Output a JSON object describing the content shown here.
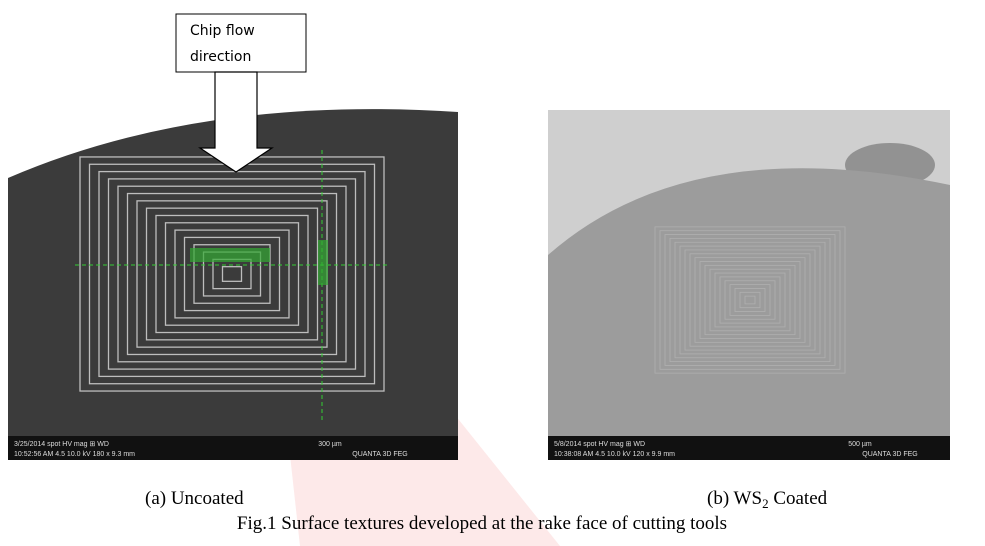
{
  "figure": {
    "callout": [
      "Chip flow",
      "direction"
    ],
    "panel_a": {
      "caption": "(a) Uncoated",
      "footer": {
        "row1": "3/25/2014   spot    HV     mag ⊞    WD",
        "row2": "10:52:56 AM  4.5  10.0 kV  180 x  9.3 mm",
        "scale": "300 µm",
        "brand": "QUANTA 3D FEG"
      }
    },
    "panel_b": {
      "caption_prefix": "(b) WS",
      "caption_sub": "2",
      "caption_suffix": " Coated",
      "footer": {
        "row1": "5/8/2014    spot    HV     mag ⊞    WD",
        "row2": "10:38:08 AM  4.5  10.0 kV  120 x  9.9 mm",
        "scale": "500 µm",
        "brand": "QUANTA 3D FEG"
      }
    },
    "caption": "Fig.1 Surface textures developed at the rake face of cutting tools"
  }
}
